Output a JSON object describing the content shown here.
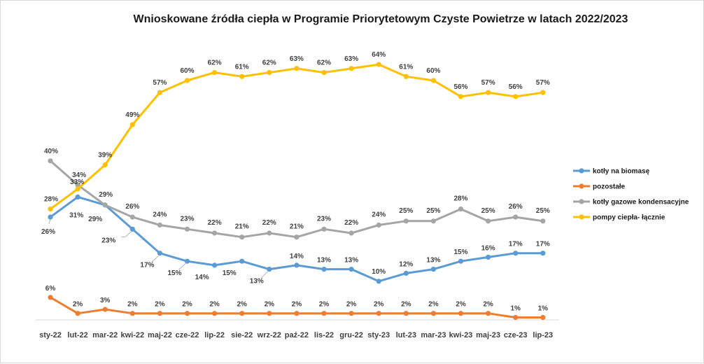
{
  "chart_data": {
    "type": "line",
    "title": "Wnioskowane źródła ciepła w Programie Priorytetowym Czyste Powietrze w latach 2022/2023",
    "xlabel": "",
    "ylabel": "",
    "ylim": [
      0,
      0.7
    ],
    "grid": false,
    "legend_position": "right",
    "categories": [
      "sty-22",
      "lut-22",
      "mar-22",
      "kwi-22",
      "maj-22",
      "cze-22",
      "lip-22",
      "sie-22",
      "wrz-22",
      "paź-22",
      "lis-22",
      "gru-22",
      "sty-23",
      "lut-23",
      "mar-23",
      "kwi-23",
      "maj-23",
      "cze-23",
      "lip-23"
    ],
    "series": [
      {
        "name": "kotły na biomasę",
        "color": "#5b9bd5",
        "values": [
          0.26,
          0.31,
          0.29,
          0.23,
          0.17,
          0.15,
          0.14,
          0.15,
          0.13,
          0.14,
          0.13,
          0.13,
          0.1,
          0.12,
          0.13,
          0.15,
          0.16,
          0.17,
          0.17
        ],
        "labels": [
          "26%",
          "31%",
          "",
          "23%",
          "17%",
          "15%",
          "14%",
          "15%",
          "13%",
          "14%",
          "13%",
          "13%",
          "10%",
          "12%",
          "13%",
          "15%",
          "16%",
          "17%",
          "17%"
        ]
      },
      {
        "name": "pozostałe",
        "color": "#ed7d31",
        "values": [
          0.06,
          0.02,
          0.03,
          0.02,
          0.02,
          0.02,
          0.02,
          0.02,
          0.02,
          0.02,
          0.02,
          0.02,
          0.02,
          0.02,
          0.02,
          0.02,
          0.02,
          0.01,
          0.01
        ],
        "labels": [
          "6%",
          "2%",
          "3%",
          "2%",
          "2%",
          "2%",
          "2%",
          "2%",
          "2%",
          "2%",
          "2%",
          "2%",
          "2%",
          "2%",
          "2%",
          "2%",
          "2%",
          "1%",
          "1%"
        ]
      },
      {
        "name": "kotły gazowe kondensacyjne",
        "color": "#a5a5a5",
        "values": [
          0.4,
          0.34,
          0.29,
          0.26,
          0.24,
          0.23,
          0.22,
          0.21,
          0.22,
          0.21,
          0.23,
          0.22,
          0.24,
          0.25,
          0.25,
          0.28,
          0.25,
          0.26,
          0.25
        ],
        "labels": [
          "40%",
          "34%",
          "29%",
          "26%",
          "24%",
          "23%",
          "22%",
          "21%",
          "22%",
          "21%",
          "23%",
          "22%",
          "24%",
          "25%",
          "25%",
          "28%",
          "25%",
          "26%",
          "25%"
        ]
      },
      {
        "name": "pompy ciepła- łącznie",
        "color": "#ffc000",
        "values": [
          0.28,
          0.33,
          0.39,
          0.49,
          0.57,
          0.6,
          0.62,
          0.61,
          0.62,
          0.63,
          0.62,
          0.63,
          0.64,
          0.61,
          0.6,
          0.56,
          0.57,
          0.56,
          0.57
        ],
        "labels": [
          "28%",
          "33%",
          "39%",
          "49%",
          "57%",
          "60%",
          "62%",
          "61%",
          "62%",
          "63%",
          "62%",
          "63%",
          "64%",
          "61%",
          "60%",
          "56%",
          "57%",
          "56%",
          "57%"
        ]
      }
    ],
    "extra_labels": [
      {
        "series": "kotły gazowe kondensacyjne",
        "index": 2,
        "text": "29%"
      }
    ]
  }
}
